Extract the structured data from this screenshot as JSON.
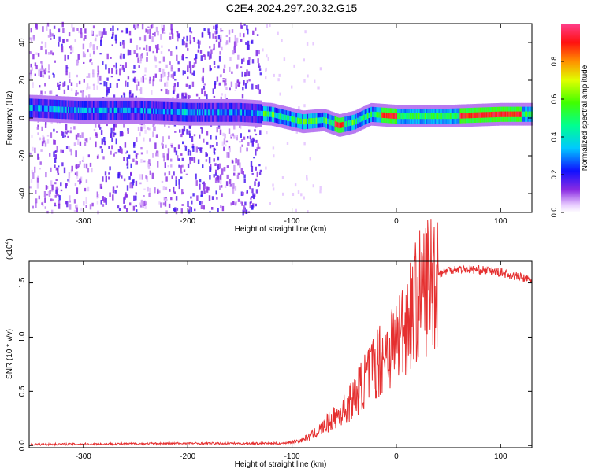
{
  "title": "C2E4.2024.297.20.32.G15",
  "chart_data": [
    {
      "type": "heatmap",
      "xlabel": "Height of straight line (km)",
      "ylabel": "Frequency (Hz)",
      "xlim": [
        -352,
        130
      ],
      "ylim": [
        -50,
        50
      ],
      "xticks": [
        -300,
        -200,
        -100,
        0,
        100
      ],
      "yticks": [
        -40,
        -20,
        0,
        20,
        40
      ],
      "colorbar": {
        "label": "Normalized spectral amplitude",
        "range": [
          0,
          1
        ],
        "ticks": [
          "0.0",
          "0.2",
          "0.4",
          "0.6",
          "0.8"
        ],
        "colormap": "rainbow (violet → blue → cyan → green → yellow → red → pink)"
      },
      "ridge": {
        "description": "Dominant frequency band centered near 0 Hz",
        "points": [
          {
            "x": -340,
            "freq": 5
          },
          {
            "x": -300,
            "freq": 4
          },
          {
            "x": -250,
            "freq": 4
          },
          {
            "x": -200,
            "freq": 3
          },
          {
            "x": -150,
            "freq": 3
          },
          {
            "x": -120,
            "freq": 2
          },
          {
            "x": -90,
            "freq": -2
          },
          {
            "x": -70,
            "freq": -1
          },
          {
            "x": -55,
            "freq": -4
          },
          {
            "x": -40,
            "freq": -2
          },
          {
            "x": -25,
            "freq": 2
          },
          {
            "x": 0,
            "freq": 1
          },
          {
            "x": 50,
            "freq": 1
          },
          {
            "x": 100,
            "freq": 2
          },
          {
            "x": 130,
            "freq": 2
          }
        ],
        "peak_amplitude_regions": [
          {
            "x_from": -60,
            "x_to": -50,
            "freq": -4
          },
          {
            "x_from": -15,
            "x_to": 0,
            "freq": 1
          },
          {
            "x_from": 60,
            "x_to": 120,
            "freq": 2
          }
        ]
      },
      "noise_region": {
        "x_from": -352,
        "x_to": -130
      }
    },
    {
      "type": "line",
      "xlabel": "Height of straight line (km)",
      "ylabel": "SNR (10 * v/v)",
      "y_multiplier_label": "(x10",
      "y_multiplier_exp": "4",
      "y_multiplier_close": ")",
      "xlim": [
        -352,
        130
      ],
      "ylim": [
        -0.02,
        1.7
      ],
      "xticks": [
        -300,
        -200,
        -100,
        0,
        100
      ],
      "yticks": [
        "0.0",
        "0.5",
        "1.0",
        "1.5"
      ],
      "series": [
        {
          "color": "#e53030",
          "x": [
            -352,
            -200,
            -110,
            -90,
            -80,
            -70,
            -60,
            -50,
            -40,
            -30,
            -20,
            -10,
            0,
            10,
            20,
            30,
            40,
            50,
            60,
            80,
            100,
            110,
            120,
            130
          ],
          "y": [
            0.01,
            0.02,
            0.02,
            0.05,
            0.1,
            0.17,
            0.25,
            0.33,
            0.45,
            0.6,
            0.75,
            0.87,
            0.97,
            1.15,
            1.35,
            1.5,
            1.58,
            1.62,
            1.63,
            1.62,
            1.6,
            1.57,
            1.55,
            1.52
          ]
        }
      ]
    }
  ]
}
